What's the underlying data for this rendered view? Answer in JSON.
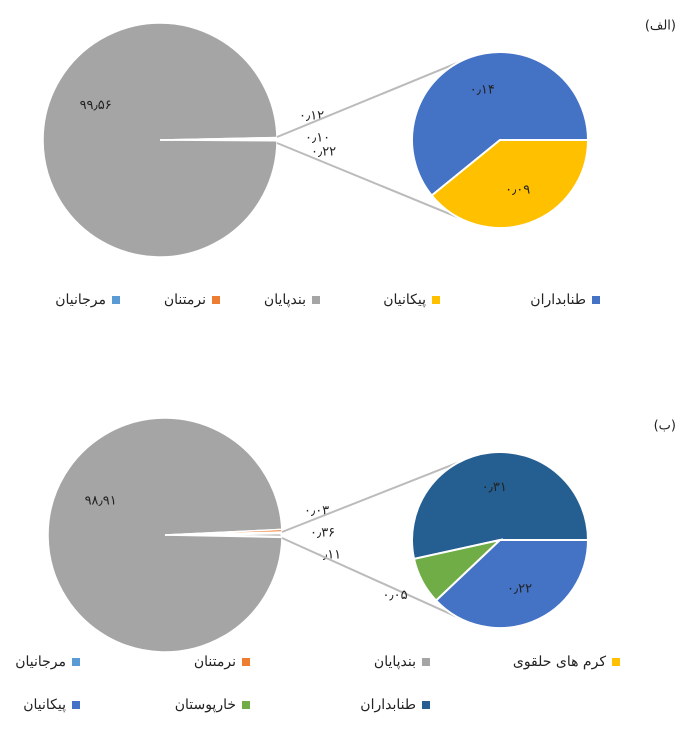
{
  "chart_data": [
    {
      "type": "pie",
      "label": "(الف)",
      "categories": [
        "طنابداران",
        "پیکانیان",
        "بندپایان",
        "نرمتنان",
        "مرجانیان"
      ],
      "colors": [
        "#4472c4",
        "#ffc000",
        "#a5a5a5",
        "#ed7d31",
        "#5b9bd5"
      ],
      "values": [
        0.14,
        0.09,
        99.56,
        0.12,
        0.1
      ],
      "value_labels": [
        "۰٫۱۴",
        "۰٫۰۹",
        "۹۹٫۵۶",
        "۰٫۱۲",
        "۰٫۱۰"
      ],
      "in_secondary": [
        true,
        true,
        false,
        false,
        false
      ],
      "other_value": 0.22,
      "other_label": "۰٫۲۲"
    },
    {
      "type": "pie",
      "label": "(ب)",
      "categories": [
        "کرم های حلقوی",
        "بندپایان",
        "نرمتنان",
        "مرجانیان",
        "طنابداران",
        "خارپوستان",
        "پیکانیان"
      ],
      "colors": [
        "#ffc000",
        "#a5a5a5",
        "#ed7d31",
        "#5b9bd5",
        "#255e91",
        "#70ad47",
        "#4472c4"
      ],
      "values": [
        0.03,
        98.91,
        0.36,
        0.11,
        0.31,
        0.05,
        0.22
      ],
      "value_labels": [
        "۰٫۰۳",
        "۹۸٫۹۱",
        "۰٫۳۶",
        "۰٫۱۱",
        "۰٫۳۱",
        "۰٫۰۵",
        "۰٫۲۲"
      ],
      "in_secondary": [
        false,
        false,
        false,
        false,
        true,
        true,
        true
      ]
    }
  ]
}
